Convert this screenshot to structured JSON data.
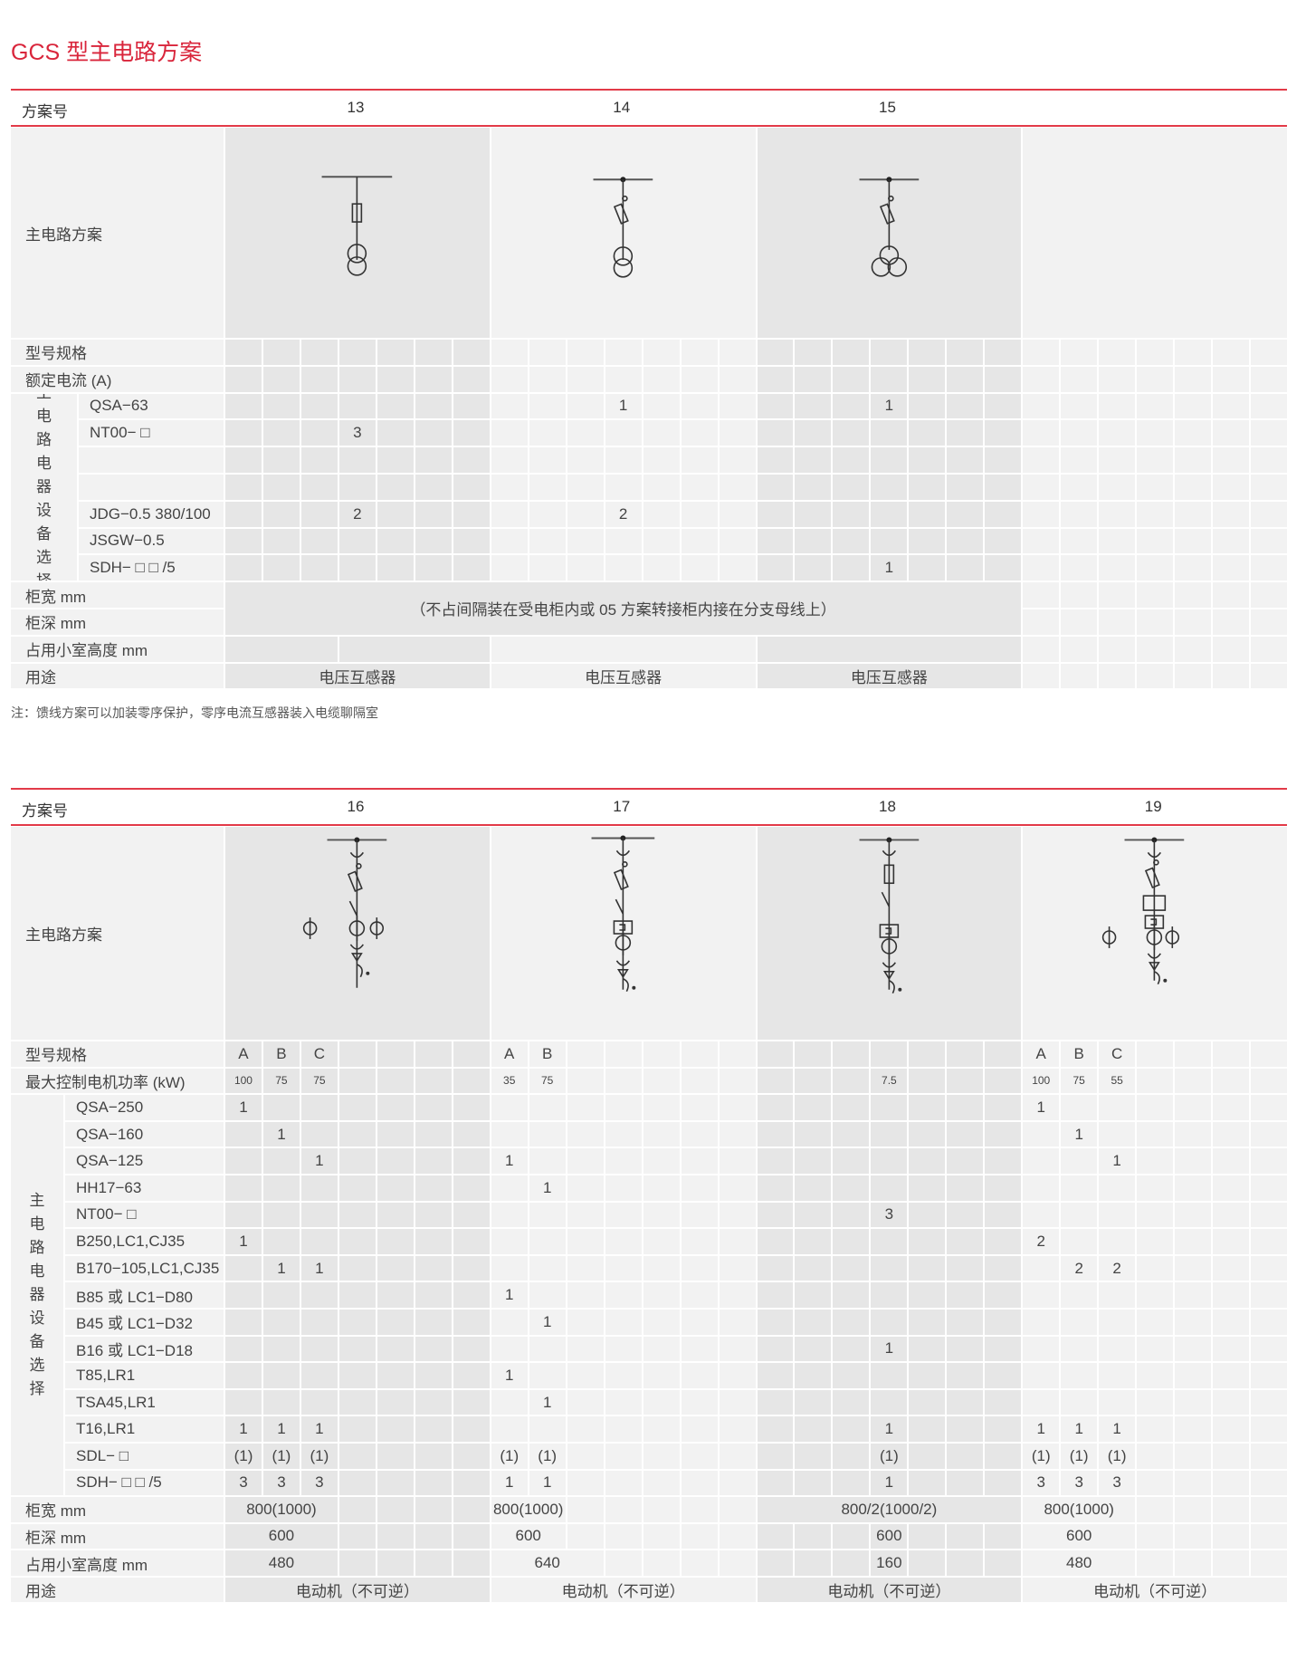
{
  "title": "GCS 型主电路方案",
  "note": "注：馈线方案可以加装零序保护，零序电流互感器装入电缆聊隔室",
  "colors": {
    "accent": "#d9253b",
    "rule": "#e23a48",
    "shade_dark": "#e6e6e6",
    "shade_light": "#f2f2f2"
  },
  "tables": [
    {
      "header_label": "方案号",
      "diagram_label": "主电路方案",
      "group_label": "主电路电器设备选择",
      "schemes": [
        {
          "num": "13",
          "diagram": "voltage-transformer-fuse-icon"
        },
        {
          "num": "14",
          "diagram": "voltage-transformer-isolator-fuse-icon"
        },
        {
          "num": "15",
          "diagram": "three-winding-transformer-isolator-fuse-icon"
        },
        {
          "num": "",
          "diagram": ""
        }
      ],
      "rows": [
        {
          "label": "型号规格",
          "v": [
            [],
            [],
            [],
            []
          ]
        },
        {
          "label": "额定电流 (A)",
          "v": [
            [],
            [],
            [],
            []
          ]
        },
        {
          "sub": "QSA−63",
          "v": [
            [],
            [
              "",
              "",
              "",
              "1"
            ],
            [
              "",
              "",
              "",
              "1"
            ],
            []
          ]
        },
        {
          "sub": "NT00− □",
          "v": [
            [
              "",
              "",
              "",
              "3"
            ],
            [],
            [],
            []
          ]
        },
        {
          "sub": "",
          "v": [
            [],
            [],
            [],
            []
          ]
        },
        {
          "sub": "",
          "v": [
            [],
            [],
            [],
            []
          ]
        },
        {
          "sub": "JDG−0.5 380/100",
          "v": [
            [
              "",
              "",
              "",
              "2"
            ],
            [
              "",
              "",
              "",
              "2"
            ],
            [],
            []
          ]
        },
        {
          "sub": "JSGW−0.5",
          "v": [
            [],
            [],
            [],
            []
          ]
        },
        {
          "sub": "SDH− □  □ /5",
          "v": [
            [],
            [],
            [
              "",
              "",
              "",
              "1"
            ],
            []
          ]
        },
        {
          "label": "柜宽 mm",
          "v": [
            [
              {
                "t": "（不占间隔装在受电柜内或 05 方案转接柜内接在分支母线上）",
                "span": 21,
                "rows": 2
              }
            ],
            null,
            null,
            []
          ]
        },
        {
          "label": "柜深 mm",
          "v": [
            null,
            null,
            null,
            []
          ]
        },
        {
          "label": "占用小室高度 mm",
          "v": [
            [
              {
                "t": "",
                "span": 3
              },
              {
                "t": "",
                "span": 4
              }
            ],
            [
              {
                "t": "",
                "span": 7
              }
            ],
            [
              {
                "t": "",
                "span": 7
              }
            ],
            []
          ]
        },
        {
          "label": "用途",
          "v": [
            [
              {
                "t": "电压互感器",
                "span": 7
              }
            ],
            [
              {
                "t": "电压互感器",
                "span": 7
              }
            ],
            [
              {
                "t": "电压互感器",
                "span": 7
              }
            ],
            []
          ]
        }
      ]
    },
    {
      "header_label": "方案号",
      "diagram_label": "主电路方案",
      "group_label": "主电路电器设备选择",
      "schemes": [
        {
          "num": "16",
          "diagram": "motor-feeder-three-ct-icon"
        },
        {
          "num": "17",
          "diagram": "motor-feeder-contactor-icon"
        },
        {
          "num": "18",
          "diagram": "motor-feeder-fuse-contactor-icon"
        },
        {
          "num": "19",
          "diagram": "motor-feeder-breaker-three-ct-icon"
        }
      ],
      "rows": [
        {
          "label": "型号规格",
          "v": [
            [
              "A",
              "B",
              "C"
            ],
            [
              "A",
              "B"
            ],
            [],
            [
              "A",
              "B",
              "C"
            ]
          ]
        },
        {
          "label": "最大控制电机功率 (kW)",
          "small": true,
          "v": [
            [
              "100",
              "75",
              "75"
            ],
            [
              "35",
              "75"
            ],
            [
              "",
              "",
              "",
              "7.5"
            ],
            [
              "100",
              "75",
              "55"
            ]
          ]
        },
        {
          "sub": "QSA−250",
          "v": [
            [
              "1"
            ],
            [],
            [],
            [
              "1"
            ]
          ]
        },
        {
          "sub": "QSA−160",
          "v": [
            [
              "",
              "1"
            ],
            [],
            [],
            [
              "",
              "1"
            ]
          ]
        },
        {
          "sub": "QSA−125",
          "v": [
            [
              "",
              "",
              "1"
            ],
            [
              "1"
            ],
            [],
            [
              "",
              "",
              "1"
            ]
          ]
        },
        {
          "sub": "HH17−63",
          "v": [
            [],
            [
              "",
              "1"
            ],
            [],
            []
          ]
        },
        {
          "sub": "NT00− □",
          "v": [
            [],
            [],
            [
              "",
              "",
              "",
              "3"
            ],
            []
          ]
        },
        {
          "sub": "B250,LC1,CJ35",
          "v": [
            [
              "1"
            ],
            [],
            [],
            [
              "2"
            ]
          ]
        },
        {
          "sub": "B170−105,LC1,CJ35",
          "v": [
            [
              "",
              "1",
              "1"
            ],
            [],
            [],
            [
              "",
              "2",
              "2"
            ]
          ]
        },
        {
          "sub": "B85 或 LC1−D80",
          "v": [
            [],
            [
              "1"
            ],
            [],
            []
          ]
        },
        {
          "sub": "B45 或 LC1−D32",
          "v": [
            [],
            [
              "",
              "1"
            ],
            [],
            []
          ]
        },
        {
          "sub": "B16 或 LC1−D18",
          "v": [
            [],
            [],
            [
              "",
              "",
              "",
              "1"
            ],
            []
          ]
        },
        {
          "sub": "T85,LR1",
          "v": [
            [],
            [
              "1"
            ],
            [],
            []
          ]
        },
        {
          "sub": "TSA45,LR1",
          "v": [
            [],
            [
              "",
              "1"
            ],
            [],
            []
          ]
        },
        {
          "sub": "T16,LR1",
          "v": [
            [
              "1",
              "1",
              "1"
            ],
            [],
            [
              "",
              "",
              "",
              "1"
            ],
            [
              "1",
              "1",
              "1"
            ]
          ]
        },
        {
          "sub": "SDL− □",
          "v": [
            [
              "(1)",
              "(1)",
              "(1)"
            ],
            [
              "(1)",
              "(1)"
            ],
            [
              "",
              "",
              "",
              "(1)"
            ],
            [
              "(1)",
              "(1)",
              "(1)"
            ]
          ]
        },
        {
          "sub": "SDH− □  □ /5",
          "v": [
            [
              "3",
              "3",
              "3"
            ],
            [
              "1",
              "1"
            ],
            [
              "",
              "",
              "",
              "1"
            ],
            [
              "3",
              "3",
              "3"
            ]
          ]
        },
        {
          "label": "柜宽 mm",
          "v": [
            [
              {
                "t": "800(1000)",
                "span": 3
              }
            ],
            [
              {
                "t": "800(1000)",
                "span": 2
              }
            ],
            [
              {
                "t": "800/2(1000/2)",
                "span": 7
              }
            ],
            [
              {
                "t": "800(1000)",
                "span": 3
              }
            ]
          ]
        },
        {
          "label": "柜深 mm",
          "v": [
            [
              {
                "t": "600",
                "span": 3
              }
            ],
            [
              {
                "t": "600",
                "span": 2
              }
            ],
            [
              "",
              "",
              "",
              "600"
            ],
            [
              {
                "t": "600",
                "span": 3
              }
            ]
          ]
        },
        {
          "label": "占用小室高度 mm",
          "v": [
            [
              {
                "t": "480",
                "span": 3
              }
            ],
            [
              {
                "t": "640",
                "span": 3
              }
            ],
            [
              "",
              "",
              "",
              "160"
            ],
            [
              {
                "t": "480",
                "span": 3
              }
            ]
          ]
        },
        {
          "label": "用途",
          "v": [
            [
              {
                "t": "电动机（不可逆）",
                "span": 7
              }
            ],
            [
              {
                "t": "电动机（不可逆）",
                "span": 7
              }
            ],
            [
              {
                "t": "电动机（不可逆）",
                "span": 7
              }
            ],
            [
              {
                "t": "电动机（不可逆）",
                "span": 7
              }
            ]
          ]
        }
      ]
    }
  ]
}
